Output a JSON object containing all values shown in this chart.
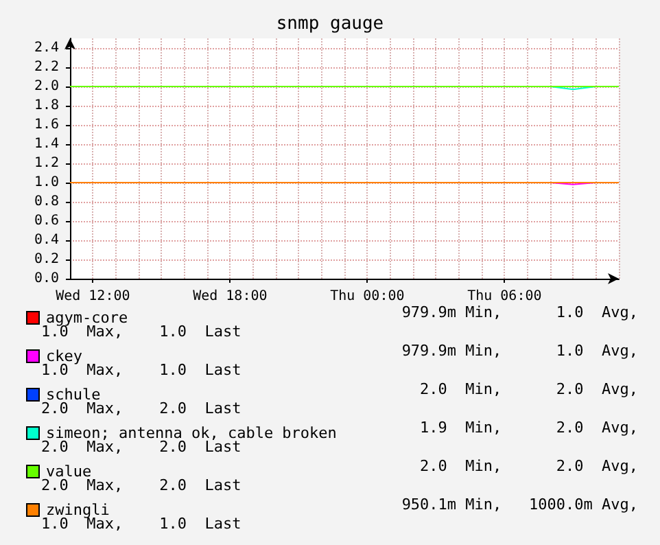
{
  "chart_data": {
    "type": "line",
    "title": "snmp gauge",
    "categories": [
      null,
      "Wed 12:00",
      null,
      null,
      null,
      null,
      null,
      "Wed 18:00",
      null,
      null,
      null,
      null,
      null,
      "Thu 00:00",
      null,
      null,
      null,
      null,
      null,
      "Thu 06:00",
      null,
      null,
      null,
      null,
      null
    ],
    "ylim": [
      0,
      2.5
    ],
    "yticks": [
      {
        "value": 0,
        "label": "0.0"
      },
      {
        "value": 0.2,
        "label": "0.2"
      },
      {
        "value": 0.4,
        "label": "0.4"
      },
      {
        "value": 0.6,
        "label": "0.6"
      },
      {
        "value": 0.8,
        "label": "0.8"
      },
      {
        "value": 1,
        "label": "1.0"
      },
      {
        "value": 1.2,
        "label": "1.2"
      },
      {
        "value": 1.4,
        "label": "1.4"
      },
      {
        "value": 1.6,
        "label": "1.6"
      },
      {
        "value": 1.8,
        "label": "1.8"
      },
      {
        "value": 2,
        "label": "2.0"
      },
      {
        "value": 2.2,
        "label": "2.2"
      },
      {
        "value": 2.4,
        "label": "2.4"
      }
    ],
    "series": [
      {
        "name": "agym-core",
        "color": "#ff0000",
        "values": [
          null,
          null,
          null,
          null,
          null,
          null,
          null,
          null,
          null,
          null,
          null,
          null,
          null,
          null,
          null,
          null,
          null,
          null,
          null,
          null,
          null,
          null,
          null,
          null,
          null
        ]
      },
      {
        "name": "ckey",
        "color": "#ff00ff",
        "values": [
          null,
          null,
          null,
          null,
          null,
          null,
          null,
          null,
          null,
          null,
          null,
          null,
          null,
          null,
          null,
          null,
          null,
          null,
          null,
          null,
          null,
          1,
          0.98,
          1,
          null
        ]
      },
      {
        "name": "schule",
        "color": "#0040ff",
        "values": [
          null,
          null,
          null,
          null,
          null,
          null,
          null,
          null,
          null,
          null,
          null,
          null,
          null,
          null,
          null,
          null,
          null,
          null,
          null,
          null,
          null,
          null,
          null,
          null,
          null
        ]
      },
      {
        "name": "simeon; antenna ok, cable broken",
        "color": "#00ffcc",
        "values": [
          null,
          null,
          null,
          null,
          null,
          null,
          null,
          null,
          null,
          null,
          null,
          null,
          null,
          null,
          null,
          null,
          null,
          null,
          null,
          null,
          null,
          2,
          1.97,
          2,
          null
        ]
      },
      {
        "name": "value",
        "color": "#66ff00",
        "values": [
          2,
          2,
          2,
          2,
          2,
          2,
          2,
          2,
          2,
          2,
          2,
          2,
          2,
          2,
          2,
          2,
          2,
          2,
          2,
          2,
          2,
          2,
          2,
          2,
          2
        ]
      },
      {
        "name": "zwingli",
        "color": "#ff8000",
        "values": [
          1,
          1,
          1,
          1,
          1,
          1,
          1,
          1,
          1,
          1,
          1,
          1,
          1,
          1,
          1,
          1,
          1,
          1,
          1,
          1,
          1,
          1,
          1,
          1,
          1
        ]
      }
    ],
    "annotations": [
      "979.9m Min,      1.0  Avg,",
      "1.0  Max,    1.0  Last",
      "979.9m Min,      1.0  Avg,",
      "1.0  Max,    1.0  Last",
      "2.0  Min,      2.0  Avg,",
      "2.0  Max,    2.0  Last",
      "1.9  Min,      2.0  Avg,",
      "2.0  Max,    2.0  Last",
      "2.0  Min,      2.0  Avg,",
      "2.0  Max,    2.0  Last",
      "950.1m Min,   1000.0m Avg,",
      "1.0  Max,    1.0  Last"
    ],
    "grid": true,
    "legend": "bottom",
    "marker": "none",
    "line_style": "solid"
  }
}
